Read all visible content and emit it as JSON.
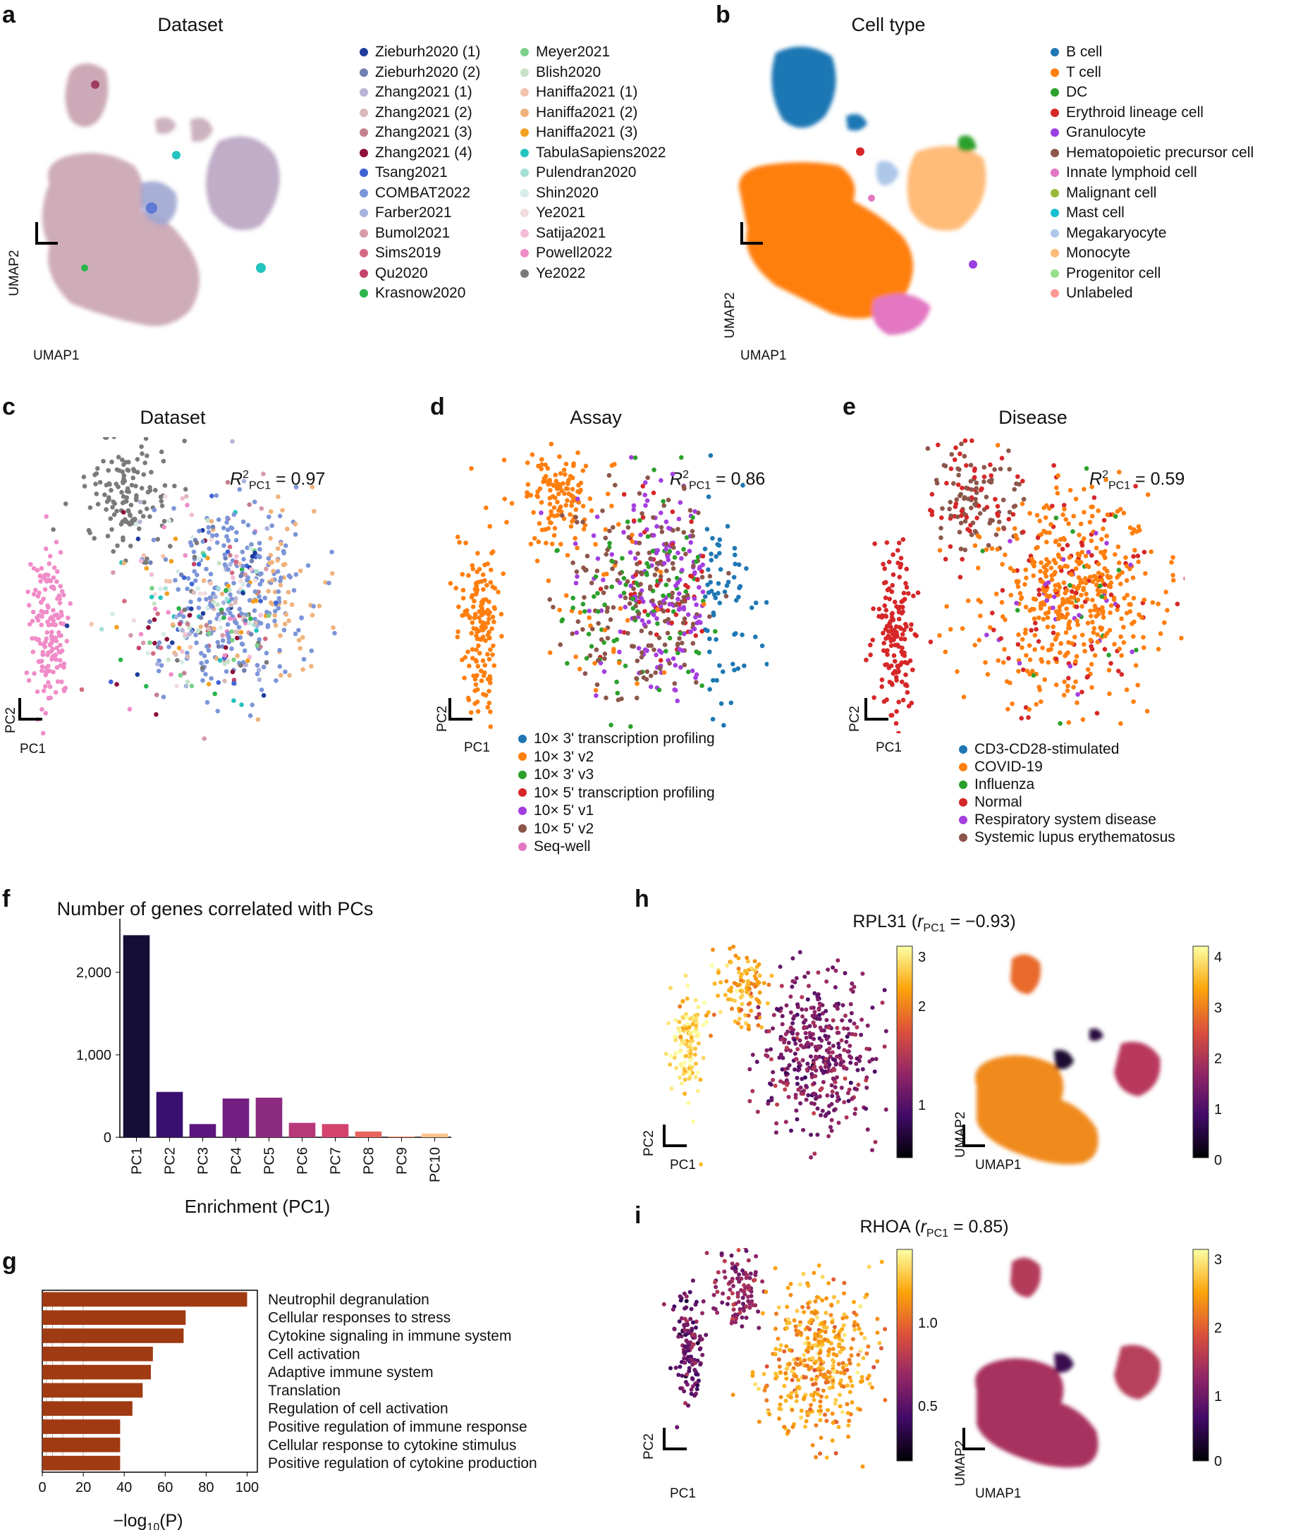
{
  "panels": {
    "a": {
      "label": "a",
      "title": "Dataset",
      "xlabel": "UMAP1",
      "ylabel": "UMAP2",
      "legend_col1": [
        {
          "name": "Zieburh2020 (1)",
          "color": "#1f3c9c"
        },
        {
          "name": "Zieburh2020 (2)",
          "color": "#6f7fb2"
        },
        {
          "name": "Zhang2021 (1)",
          "color": "#b7b4d6"
        },
        {
          "name": "Zhang2021 (2)",
          "color": "#d9b9b9"
        },
        {
          "name": "Zhang2021 (3)",
          "color": "#c4808f"
        },
        {
          "name": "Zhang2021 (4)",
          "color": "#8c0f3c"
        },
        {
          "name": "Tsang2021",
          "color": "#3f63d4"
        },
        {
          "name": "COMBAT2022",
          "color": "#7c95d8"
        },
        {
          "name": "Farber2021",
          "color": "#a9b3df"
        },
        {
          "name": "Bumol2021",
          "color": "#d79aa8"
        },
        {
          "name": "Sims2019",
          "color": "#d36b82"
        },
        {
          "name": "Qu2020",
          "color": "#c2446a"
        },
        {
          "name": "Krasnow2020",
          "color": "#2bb44a"
        }
      ],
      "legend_col2": [
        {
          "name": "Meyer2021",
          "color": "#7bd08a"
        },
        {
          "name": "Blish2020",
          "color": "#c6e3c8"
        },
        {
          "name": "Haniffa2021 (1)",
          "color": "#f3c3b0"
        },
        {
          "name": "Haniffa2021 (2)",
          "color": "#f0b27c"
        },
        {
          "name": "Haniffa2021 (3)",
          "color": "#f3a021"
        },
        {
          "name": "TabulaSapiens2022",
          "color": "#22c4bd"
        },
        {
          "name": "Pulendran2020",
          "color": "#a4dfd6"
        },
        {
          "name": "Shin2020",
          "color": "#d6ece8"
        },
        {
          "name": "Ye2021",
          "color": "#f2dcde"
        },
        {
          "name": "Satija2021",
          "color": "#f3bcd6"
        },
        {
          "name": "Powell2022",
          "color": "#f08cc8"
        },
        {
          "name": "Ye2022",
          "color": "#7a7a7a"
        }
      ]
    },
    "b": {
      "label": "b",
      "title": "Cell type",
      "xlabel": "UMAP1",
      "ylabel": "UMAP2",
      "legend": [
        {
          "name": "B cell",
          "color": "#1f77b4"
        },
        {
          "name": "T cell",
          "color": "#ff7f0e"
        },
        {
          "name": "DC",
          "color": "#2ca02c"
        },
        {
          "name": "Erythroid lineage cell",
          "color": "#d62728"
        },
        {
          "name": "Granulocyte",
          "color": "#9c3fe0"
        },
        {
          "name": "Hematopoietic precursor cell",
          "color": "#8c564b"
        },
        {
          "name": "Innate lymphoid cell",
          "color": "#e377c2"
        },
        {
          "name": "Malignant cell",
          "color": "#98b83a"
        },
        {
          "name": "Mast cell",
          "color": "#17becf"
        },
        {
          "name": "Megakaryocyte",
          "color": "#aec7e8"
        },
        {
          "name": "Monocyte",
          "color": "#ffbb78"
        },
        {
          "name": "Progenitor cell",
          "color": "#98df8a"
        },
        {
          "name": "Unlabeled",
          "color": "#ff9896"
        }
      ]
    },
    "c": {
      "label": "c",
      "title": "Dataset",
      "xlabel": "PC1",
      "ylabel": "PC2",
      "r2": "0.97"
    },
    "d": {
      "label": "d",
      "title": "Assay",
      "xlabel": "PC1",
      "ylabel": "PC2",
      "r2": "0.86",
      "legend": [
        {
          "name": "10× 3' transcription profiling",
          "color": "#1f77b4"
        },
        {
          "name": "10× 3' v2",
          "color": "#ff7f0e"
        },
        {
          "name": "10× 3' v3",
          "color": "#2ca02c"
        },
        {
          "name": "10× 5' transcription profiling",
          "color": "#d62728"
        },
        {
          "name": "10× 5' v1",
          "color": "#a43ee0"
        },
        {
          "name": "10× 5' v2",
          "color": "#8c564b"
        },
        {
          "name": "Seq-well",
          "color": "#e377c2"
        }
      ]
    },
    "e": {
      "label": "e",
      "title": "Disease",
      "xlabel": "PC1",
      "ylabel": "PC2",
      "r2": "0.59",
      "legend": [
        {
          "name": "CD3-CD28-stimulated",
          "color": "#1f77b4"
        },
        {
          "name": "COVID-19",
          "color": "#ff7f0e"
        },
        {
          "name": "Influenza",
          "color": "#2ca02c"
        },
        {
          "name": "Normal",
          "color": "#d62728"
        },
        {
          "name": "Respiratory system disease",
          "color": "#a43ee0"
        },
        {
          "name": "Systemic lupus erythematosus",
          "color": "#8c564b"
        }
      ]
    },
    "h": {
      "label": "h",
      "gene": "RPL31",
      "r_value": "= −0.93",
      "xlabel": "PC1",
      "ylabel": "PC2",
      "xlabel2": "UMAP1",
      "ylabel2": "UMAP2",
      "cb1_ticks": [
        "3",
        "2",
        "1"
      ],
      "cb2_ticks": [
        "4",
        "3",
        "2",
        "1",
        "0"
      ]
    },
    "i": {
      "label": "i",
      "gene": "RHOA",
      "r_value": "= 0.85",
      "xlabel": "PC1",
      "ylabel": "PC2",
      "xlabel2": "UMAP1",
      "ylabel2": "UMAP2",
      "cb1_ticks": [
        "1.0",
        "0.5"
      ],
      "cb2_ticks": [
        "3",
        "2",
        "1",
        "0"
      ]
    },
    "f": {
      "label": "f"
    },
    "g": {
      "label": "g",
      "xlabel_text": "−log",
      "xlabel_sub": "10",
      "xlabel_tail": "(P)"
    }
  },
  "chart_data": [
    {
      "id": "f",
      "type": "bar",
      "title": "Number of genes correlated with PCs",
      "categories": [
        "PC1",
        "PC2",
        "PC3",
        "PC4",
        "PC5",
        "PC6",
        "PC7",
        "PC8",
        "PC9",
        "PC10"
      ],
      "values": [
        2450,
        550,
        160,
        470,
        480,
        175,
        160,
        70,
        10,
        45
      ],
      "colors": [
        "#150e37",
        "#3b0f70",
        "#5a167e",
        "#721f81",
        "#8c2981",
        "#b73779",
        "#d3436e",
        "#e8635d",
        "#f7936f",
        "#fec489"
      ],
      "yticks": [
        0,
        1000,
        2000
      ],
      "ytick_labels": [
        "0",
        "1,000",
        "2,000"
      ],
      "ylim": [
        0,
        2650
      ],
      "xlabel": "Enrichment (PC1)",
      "ylabel": ""
    },
    {
      "id": "g",
      "type": "bar",
      "orientation": "horizontal",
      "categories": [
        "Neutrophil degranulation",
        "Cellular responses to stress",
        "Cytokine signaling in immune system",
        "Cell activation",
        "Adaptive immune system",
        "Translation",
        "Regulation of cell activation",
        "Positive regulation of immune response",
        "Cellular response to cytokine stimulus",
        "Positive regulation of cytokine production"
      ],
      "values": [
        100,
        70,
        69,
        54,
        53,
        49,
        44,
        38,
        38,
        38
      ],
      "color": "#a03a12",
      "xticks": [
        0,
        20,
        40,
        60,
        80,
        100
      ],
      "xlim": [
        0,
        105
      ],
      "xlabel": "−log10(P)"
    }
  ]
}
